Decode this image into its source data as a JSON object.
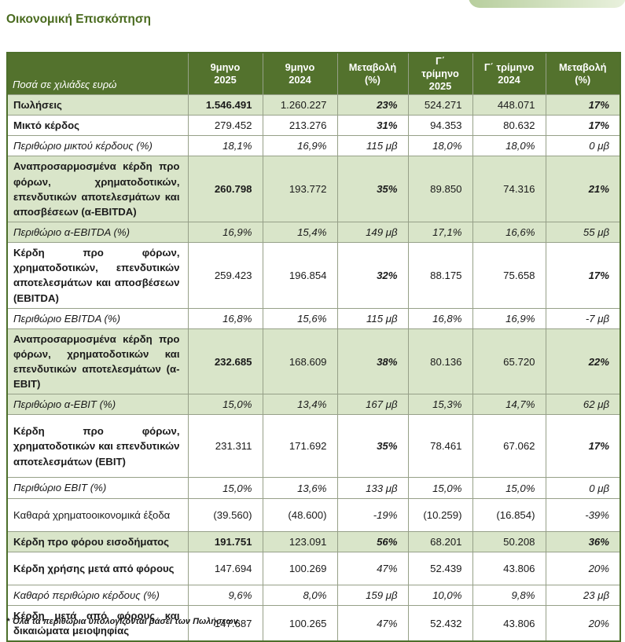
{
  "page": {
    "title": "Οικονομική Επισκόπηση",
    "footnote": "* Όλα τα περιθώρια υπολογίζονται βάσει των Πωλήσεων."
  },
  "theme": {
    "header_green": "#53722d",
    "row_shade_green": "#d9e5c9",
    "title_green": "#4a6b1f",
    "border_green": "#4d6f2b"
  },
  "table": {
    "header": {
      "label": "Ποσά σε χιλιάδες ευρώ",
      "cols": [
        "9μηνο\n2025",
        "9μηνο\n2024",
        "Μεταβολή\n(%)",
        "Γ΄\nτρίμηνο\n2025",
        "Γ΄ τρίμηνο\n2024",
        "Μεταβολή\n(%)"
      ]
    },
    "rows": [
      {
        "label": "Πωλήσεις",
        "values": [
          "1.546.491",
          "1.260.227",
          "23%",
          "524.271",
          "448.071",
          "17%"
        ],
        "shade": true,
        "labelStyle": "bold",
        "firstBold": true,
        "pctStyle": "bi"
      },
      {
        "label": "Μικτό κέρδος",
        "values": [
          "279.452",
          "213.276",
          "31%",
          "94.353",
          "80.632",
          "17%"
        ],
        "shade": false,
        "labelStyle": "bold",
        "pctStyle": "bi"
      },
      {
        "label": "Περιθώριο μικτού κέρδους (%)",
        "values": [
          "18,1%",
          "16,9%",
          "115 μβ",
          "18,0%",
          "18,0%",
          "0 μβ"
        ],
        "shade": false,
        "labelStyle": "italic",
        "valueStyle": "italic"
      },
      {
        "label": "Αναπροσαρμοσμένα κέρδη προ φόρων, χρηματοδοτικών, επενδυτικών αποτελεσμάτων και αποσβέσεων (α-EBITDA)",
        "values": [
          "260.798",
          "193.772",
          "35%",
          "89.850",
          "74.316",
          "21%"
        ],
        "shade": true,
        "labelStyle": "bold",
        "firstBold": true,
        "pctStyle": "bi"
      },
      {
        "label": "Περιθώριο α-EBITDA (%)",
        "values": [
          "16,9%",
          "15,4%",
          "149 μβ",
          "17,1%",
          "16,6%",
          "55 μβ"
        ],
        "shade": true,
        "labelStyle": "italic",
        "valueStyle": "italic"
      },
      {
        "label": "Κέρδη προ φόρων, χρηματοδοτικών, επενδυτικών αποτελεσμάτων και αποσβέσεων (EBITDA)",
        "values": [
          "259.423",
          "196.854",
          "32%",
          "88.175",
          "75.658",
          "17%"
        ],
        "shade": false,
        "labelStyle": "bold",
        "pctStyle": "bi"
      },
      {
        "label": "Περιθώριο EBITDA (%)",
        "values": [
          "16,8%",
          "15,6%",
          "115 μβ",
          "16,8%",
          "16,9%",
          "-7 μβ"
        ],
        "shade": false,
        "labelStyle": "italic",
        "valueStyle": "italic"
      },
      {
        "label": "Αναπροσαρμοσμένα κέρδη προ φόρων, χρηματοδοτικών και επενδυτικών αποτελεσμάτων (α-EBIT)",
        "values": [
          "232.685",
          "168.609",
          "38%",
          "80.136",
          "65.720",
          "22%"
        ],
        "shade": true,
        "labelStyle": "bold",
        "firstBold": true,
        "pctStyle": "bi"
      },
      {
        "label": "Περιθώριο α-EBIT (%)",
        "values": [
          "15,0%",
          "13,4%",
          "167 μβ",
          "15,3%",
          "14,7%",
          "62 μβ"
        ],
        "shade": true,
        "labelStyle": "italic",
        "valueStyle": "italic"
      },
      {
        "label": "Κέρδη προ φόρων, χρηματοδοτικών και επενδυτικών αποτελεσμάτων (EBIT)",
        "values": [
          "231.311",
          "171.692",
          "35%",
          "78.461",
          "67.062",
          "17%"
        ],
        "shade": false,
        "labelStyle": "bold",
        "pctStyle": "bi"
      },
      {
        "label": "Περιθώριο EBIT (%)",
        "values": [
          "15,0%",
          "13,6%",
          "133 μβ",
          "15,0%",
          "15,0%",
          "0 μβ"
        ],
        "shade": false,
        "labelStyle": "italic",
        "valueStyle": "italic"
      },
      {
        "label": "Καθαρά χρηματοοικονομικά έξοδα",
        "values": [
          "(39.560)",
          "(48.600)",
          "-19%",
          "(10.259)",
          "(16.854)",
          "-39%"
        ],
        "shade": false,
        "labelStyle": "normal",
        "pctStyle": "it"
      },
      {
        "label": "Κέρδη προ φόρου εισοδήματος",
        "values": [
          "191.751",
          "123.091",
          "56%",
          "68.201",
          "50.208",
          "36%"
        ],
        "shade": true,
        "labelStyle": "bold",
        "firstBold": true,
        "pctStyle": "bi"
      },
      {
        "label": "Κέρδη χρήσης μετά από φόρους",
        "values": [
          "147.694",
          "100.269",
          "47%",
          "52.439",
          "43.806",
          "20%"
        ],
        "shade": false,
        "labelStyle": "bold",
        "pctStyle": "it"
      },
      {
        "label": "Καθαρό περιθώριο κέρδους (%)",
        "values": [
          "9,6%",
          "8,0%",
          "159 μβ",
          "10,0%",
          "9,8%",
          "23 μβ"
        ],
        "shade": false,
        "labelStyle": "italic",
        "valueStyle": "italic"
      },
      {
        "label": "Κέρδη μετά από φόρους και δικαιώματα μειοψηφίας",
        "values": [
          "147.687",
          "100.265",
          "47%",
          "52.432",
          "43.806",
          "20%"
        ],
        "shade": false,
        "labelStyle": "bold",
        "pctStyle": "it"
      }
    ]
  }
}
